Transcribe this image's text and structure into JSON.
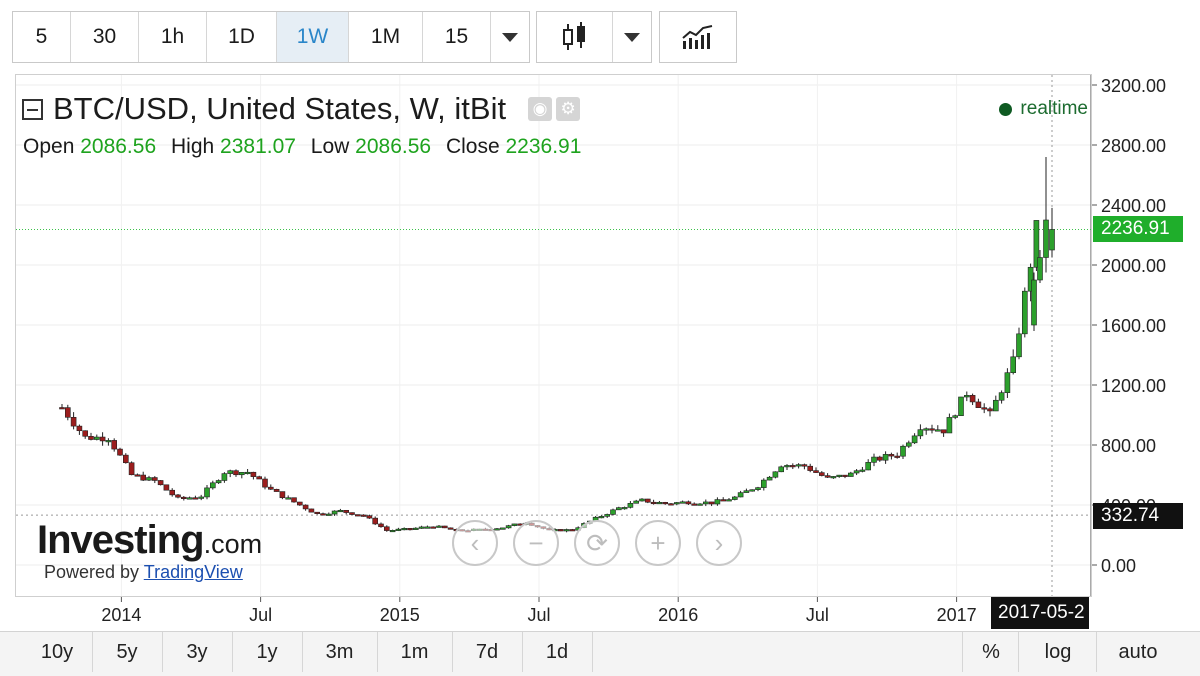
{
  "toolbar": {
    "intervals": [
      "5",
      "30",
      "1h",
      "1D",
      "1W",
      "1M",
      "15"
    ],
    "active_interval": "1W"
  },
  "legend": {
    "title": "BTC/USD, United States, W, itBit",
    "open_label": "Open",
    "open": "2086.56",
    "high_label": "High",
    "high": "2381.07",
    "low_label": "Low",
    "low": "2086.56",
    "close_label": "Close",
    "close": "2236.91",
    "status": "realtime"
  },
  "price_labels": {
    "last": "2236.91",
    "crosshair": "332.74",
    "crosshair_date": "2017-05-2"
  },
  "watermark": {
    "brand": "Investing",
    "brand_suffix": ".com",
    "powered": "Powered by",
    "powered_link": "TradingView"
  },
  "range_bar": {
    "ranges": [
      "10y",
      "5y",
      "3y",
      "1y",
      "3m",
      "1m",
      "7d",
      "1d"
    ],
    "right": [
      "%",
      "log",
      "auto"
    ]
  },
  "colors": {
    "up": "#2ca02c",
    "down": "#9b1d1d",
    "last_price": "#1fae2b",
    "accent": "#2a86c9"
  },
  "chart_data": {
    "type": "candlestick",
    "title": "BTC/USD, United States, W, itBit",
    "x_ticks": [
      "2014",
      "Jul",
      "2015",
      "Jul",
      "2016",
      "Jul",
      "2017"
    ],
    "y_ticks": [
      "0.00",
      "400.00",
      "800.00",
      "1200.00",
      "1600.00",
      "2000.00",
      "2400.00",
      "2800.00",
      "3200.00"
    ],
    "ylim": [
      0,
      3200
    ],
    "grid": true,
    "approx_weekly_close": [
      [
        "2013-11",
        1050
      ],
      [
        "2013-12",
        850
      ],
      [
        "2014-01",
        850
      ],
      [
        "2014-02",
        600
      ],
      [
        "2014-03",
        560
      ],
      [
        "2014-04",
        440
      ],
      [
        "2014-05",
        460
      ],
      [
        "2014-06",
        620
      ],
      [
        "2014-07",
        620
      ],
      [
        "2014-08",
        500
      ],
      [
        "2014-09",
        420
      ],
      [
        "2014-10",
        340
      ],
      [
        "2014-11",
        360
      ],
      [
        "2014-12",
        330
      ],
      [
        "2015-01",
        230
      ],
      [
        "2015-02",
        240
      ],
      [
        "2015-03",
        260
      ],
      [
        "2015-04",
        230
      ],
      [
        "2015-05",
        235
      ],
      [
        "2015-06",
        250
      ],
      [
        "2015-07",
        285
      ],
      [
        "2015-08",
        230
      ],
      [
        "2015-09",
        235
      ],
      [
        "2015-10",
        310
      ],
      [
        "2015-11",
        380
      ],
      [
        "2015-12",
        430
      ],
      [
        "2016-01",
        410
      ],
      [
        "2016-02",
        420
      ],
      [
        "2016-03",
        415
      ],
      [
        "2016-04",
        450
      ],
      [
        "2016-05",
        530
      ],
      [
        "2016-06",
        670
      ],
      [
        "2016-07",
        660
      ],
      [
        "2016-08",
        575
      ],
      [
        "2016-09",
        605
      ],
      [
        "2016-10",
        700
      ],
      [
        "2016-11",
        740
      ],
      [
        "2016-12",
        930
      ],
      [
        "2017-01",
        900
      ],
      [
        "2017-02",
        1150
      ],
      [
        "2017-03",
        1000
      ],
      [
        "2017-04",
        1350
      ],
      [
        "2017-05",
        2236.91
      ]
    ]
  }
}
